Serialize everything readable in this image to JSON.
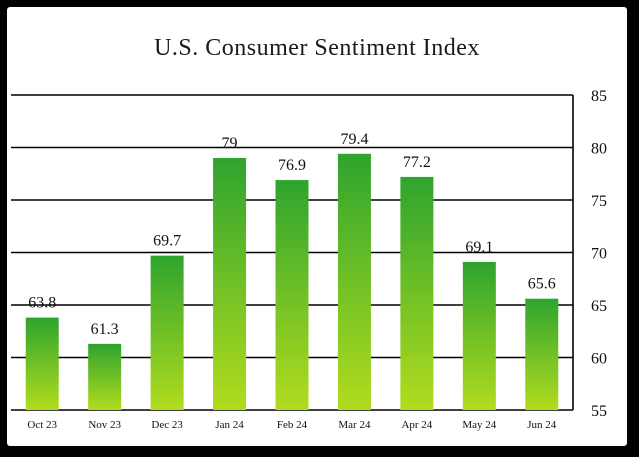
{
  "chart_data": {
    "type": "bar",
    "title": "U.S. Consumer Sentiment Index",
    "xlabel": "",
    "ylabel": "",
    "categories": [
      "Oct 23",
      "Nov 23",
      "Dec 23",
      "Jan 24",
      "Feb 24",
      "Mar 24",
      "Apr 24",
      "May 24",
      "Jun 24"
    ],
    "values": [
      63.8,
      61.3,
      69.7,
      79,
      76.9,
      79.4,
      77.2,
      69.1,
      65.6
    ],
    "value_labels": [
      "63.8",
      "61.3",
      "69.7",
      "79",
      "76.9",
      "79.4",
      "77.2",
      "69.1",
      "65.6"
    ],
    "ylim": [
      55,
      85
    ],
    "yticks": [
      55,
      60,
      65,
      70,
      75,
      80,
      85
    ],
    "y_axis_side": "right",
    "grid": "horizontal",
    "legend": "none",
    "colors": {
      "bar_top": "#2ea42e",
      "bar_bottom": "#b2dc1e",
      "frame": "#000000",
      "background": "#ffffff"
    }
  }
}
